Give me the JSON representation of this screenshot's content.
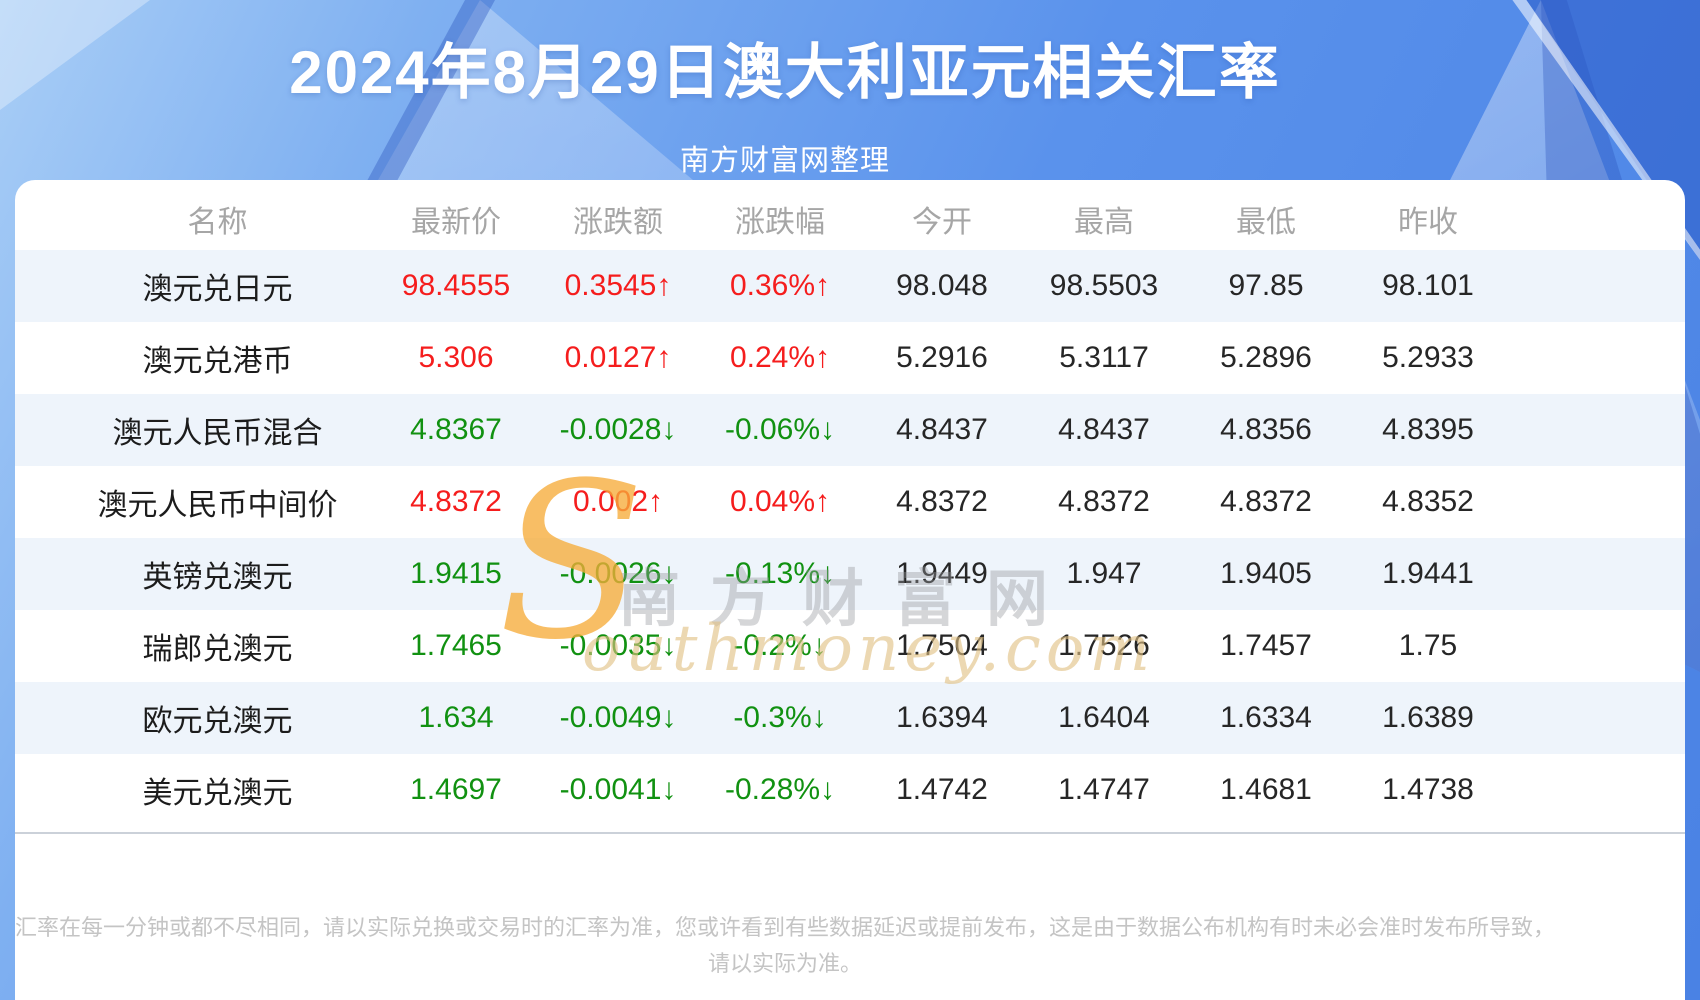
{
  "page": {
    "title": "2024年8月29日澳大利亚元相关汇率",
    "subtitle": "南方财富网整理",
    "footer_line1": "汇率在每一分钟或都不尽相同，请以实际兑换或交易时的汇率为准，您或许看到有些数据延迟或提前发布，这是由于数据公布机构有时未必会准时发布所导致，",
    "footer_line2": "请以实际为准。",
    "watermark_chinese": "南方财富网",
    "watermark_s": "S",
    "watermark_script": "outhmoney.com"
  },
  "colors": {
    "up_red": "#f51d1d",
    "down_green": "#119111",
    "row_alt_bg": "#eef4fb",
    "header_gray": "#a6a6a6",
    "banner_blue": "#4a82e4"
  },
  "chart_data": {
    "type": "table",
    "title": "2024年8月29日澳大利亚元相关汇率",
    "columns": [
      "名称",
      "最新价",
      "涨跌额",
      "涨跌幅",
      "今开",
      "最高",
      "最低",
      "昨收"
    ],
    "rows": [
      [
        "澳元兑日元",
        "98.4555",
        "0.3545↑",
        "0.36%↑",
        "98.048",
        "98.5503",
        "97.85",
        "98.101"
      ],
      [
        "澳元兑港币",
        "5.306",
        "0.0127↑",
        "0.24%↑",
        "5.2916",
        "5.3117",
        "5.2896",
        "5.2933"
      ],
      [
        "澳元人民币混合",
        "4.8367",
        "-0.0028↓",
        "-0.06%↓",
        "4.8437",
        "4.8437",
        "4.8356",
        "4.8395"
      ],
      [
        "澳元人民币中间价",
        "4.8372",
        "0.002↑",
        "0.04%↑",
        "4.8372",
        "4.8372",
        "4.8372",
        "4.8352"
      ],
      [
        "英镑兑澳元",
        "1.9415",
        "-0.0026↓",
        "-0.13%↓",
        "1.9449",
        "1.947",
        "1.9405",
        "1.9441"
      ],
      [
        "瑞郎兑澳元",
        "1.7465",
        "-0.0035↓",
        "-0.2%↓",
        "1.7504",
        "1.7526",
        "1.7457",
        "1.75"
      ],
      [
        "欧元兑澳元",
        "1.634",
        "-0.0049↓",
        "-0.3%↓",
        "1.6394",
        "1.6404",
        "1.6334",
        "1.6389"
      ],
      [
        "美元兑澳元",
        "1.4697",
        "-0.0041↓",
        "-0.28%↓",
        "1.4742",
        "1.4747",
        "1.4681",
        "1.4738"
      ]
    ],
    "trend": [
      "up",
      "up",
      "down",
      "up",
      "down",
      "down",
      "down",
      "down"
    ]
  }
}
